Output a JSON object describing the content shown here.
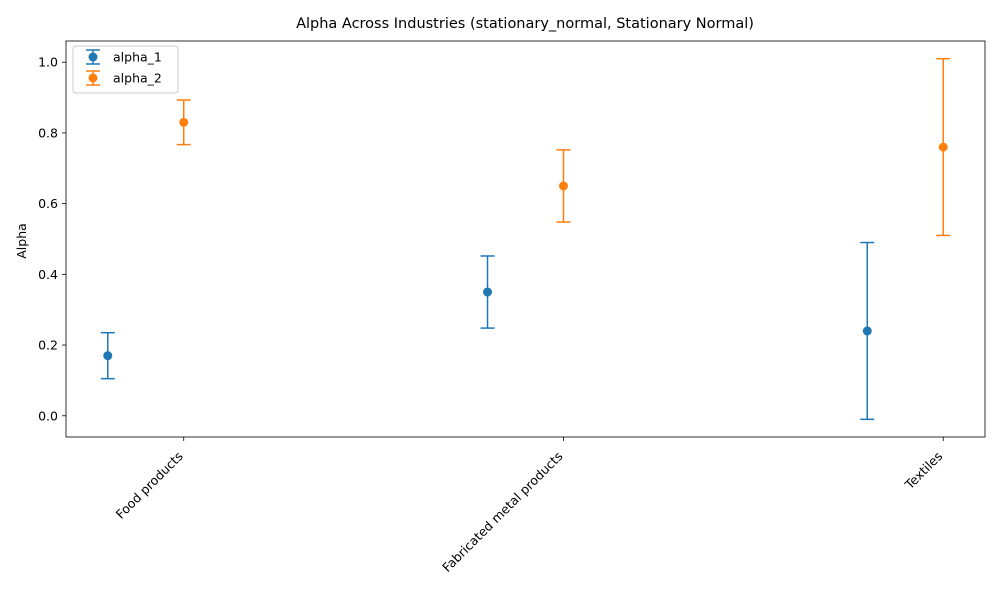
{
  "chart_data": {
    "type": "errorbar",
    "title": "Alpha Across Industries (stationary_normal, Stationary Normal)",
    "xlabel": "",
    "ylabel": "Alpha",
    "categories": [
      "Food products",
      "Fabricated metal products",
      "Textiles"
    ],
    "xlim": [
      -0.31,
      2.11
    ],
    "ylim": [
      -0.06,
      1.06
    ],
    "yticks": [
      0.0,
      0.2,
      0.4,
      0.6,
      0.8,
      1.0
    ],
    "ytick_labels": [
      "0.0",
      "0.2",
      "0.4",
      "0.6",
      "0.8",
      "1.0"
    ],
    "grid": false,
    "legend_position": "top-left",
    "series": [
      {
        "name": "alpha_1",
        "color": "#1f77b4",
        "offset": -0.2,
        "values": [
          0.17,
          0.35,
          0.24
        ],
        "errors": [
          0.065,
          0.102,
          0.25
        ]
      },
      {
        "name": "alpha_2",
        "color": "#ff7f0e",
        "offset": 0.0,
        "values": [
          0.83,
          0.65,
          0.76
        ],
        "errors": [
          0.063,
          0.102,
          0.25
        ]
      }
    ]
  }
}
